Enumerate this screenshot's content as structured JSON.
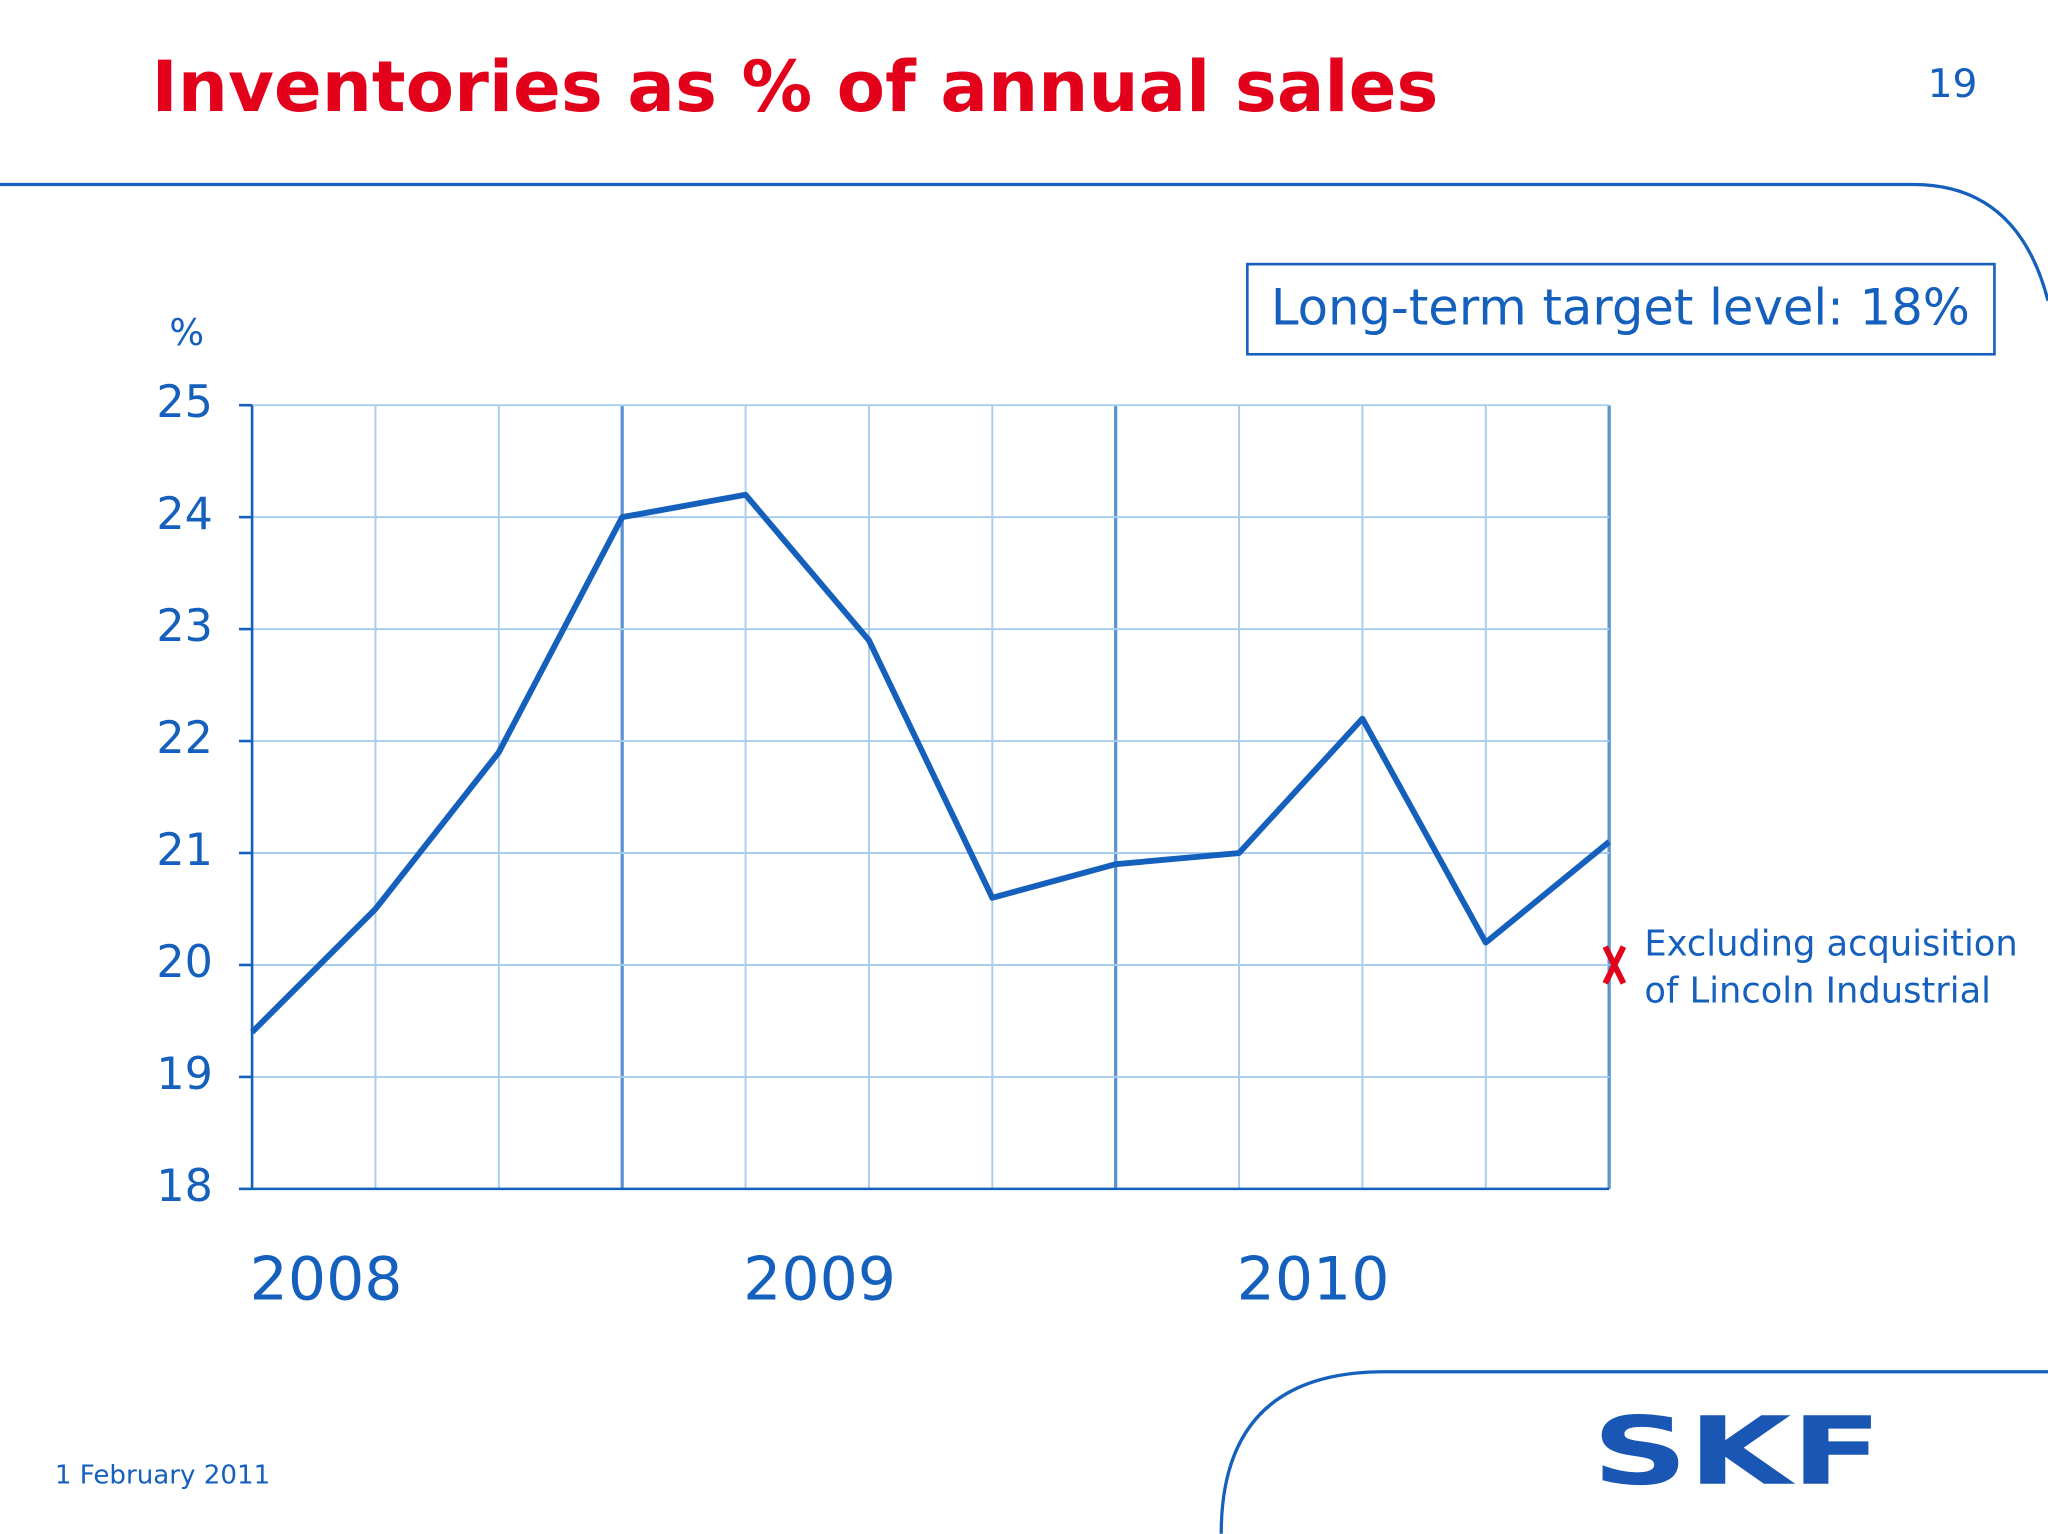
{
  "chart_data": {
    "type": "line",
    "title": "Inventories as % of annual sales",
    "y_label": "%",
    "target_note": "Long-term target level: 18%",
    "categories": [
      null,
      null,
      null,
      null,
      null,
      null,
      null,
      null,
      null,
      null,
      null,
      null
    ],
    "groups": [
      "2008",
      "2009",
      "2010"
    ],
    "values": [
      19.4,
      20.5,
      21.9,
      24.0,
      24.2,
      22.9,
      20.6,
      20.9,
      21.0,
      22.2,
      20.2,
      21.1
    ],
    "color": "#1560bd",
    "ylim": [
      18,
      25
    ],
    "yticks": [
      18,
      19,
      20,
      21,
      22,
      23,
      24,
      25
    ],
    "grid": true,
    "annotation": {
      "value": 20,
      "color": "#e3001b",
      "lines": [
        "Excluding acquisition",
        "of Lincoln Industrial"
      ]
    }
  },
  "page_number": 19,
  "date": "1 February 2011",
  "logo": "SKF"
}
